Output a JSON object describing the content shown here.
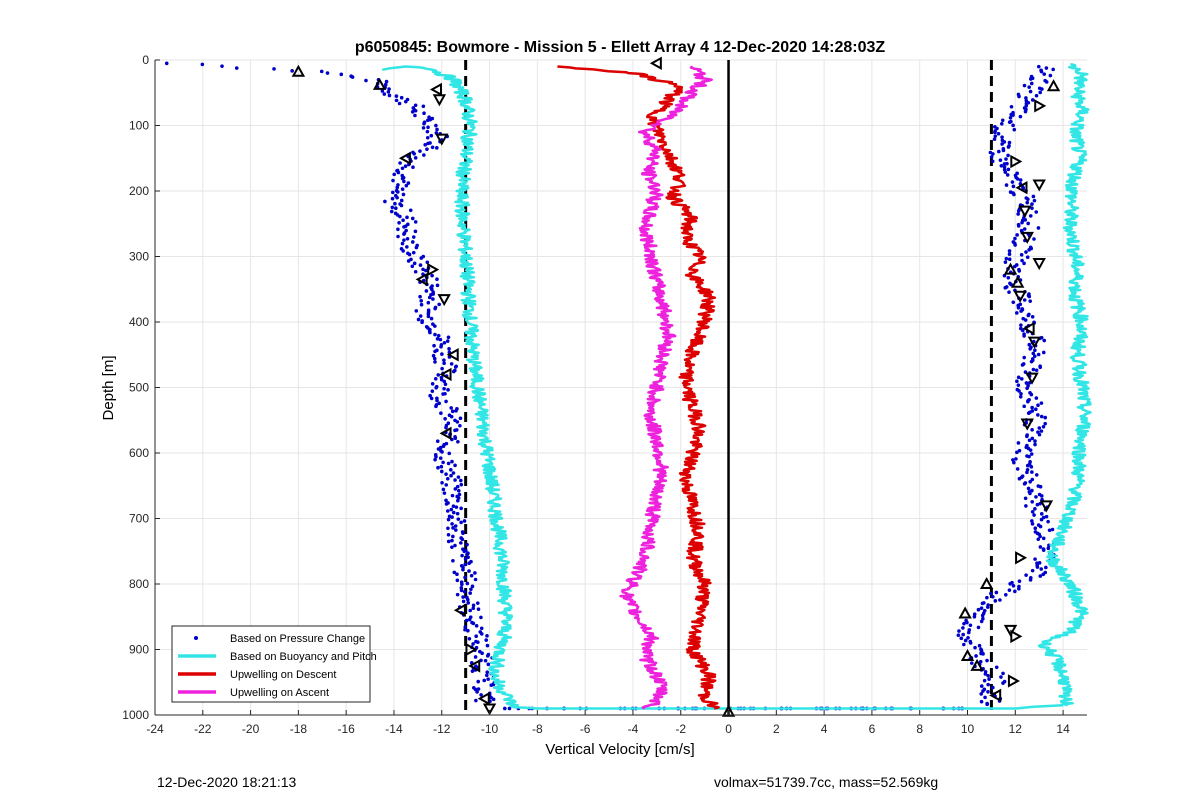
{
  "footer": {
    "left": "12-Dec-2020 18:21:13",
    "right": "volmax=51739.7cc, mass=52.569kg"
  },
  "chart_data": {
    "type": "scatter",
    "title": "p6050845: Bowmore - Mission 5 - Ellett Array 4 12-Dec-2020 14:28:03Z",
    "xlabel": "Vertical Velocity [cm/s]",
    "ylabel": "Depth [m]",
    "xlim": [
      -24,
      15
    ],
    "ylim": [
      0,
      1000
    ],
    "y_reversed": true,
    "grid": true,
    "x_ticks": [
      -24,
      -22,
      -20,
      -18,
      -16,
      -14,
      -12,
      -10,
      -8,
      -6,
      -4,
      -2,
      0,
      2,
      4,
      6,
      8,
      10,
      12,
      14
    ],
    "y_ticks": [
      0,
      100,
      200,
      300,
      400,
      500,
      600,
      700,
      800,
      900,
      1000
    ],
    "reference_lines": [
      {
        "x": -11,
        "style": "dashed",
        "color": "#000000"
      },
      {
        "x": 0,
        "style": "solid",
        "color": "#000000"
      },
      {
        "x": 11,
        "style": "dashed",
        "color": "#000000"
      }
    ],
    "legend": {
      "position": "bottom-left",
      "entries": [
        {
          "label": "Based on Pressure Change",
          "color": "#0000cc",
          "marker": "dot"
        },
        {
          "label": "Based on Buoyancy and Pitch",
          "color": "#33e6e6",
          "marker": "line"
        },
        {
          "label": "Upwelling on Descent",
          "color": "#dd0000",
          "marker": "line"
        },
        {
          "label": "Upwelling on Ascent",
          "color": "#ee22dd",
          "marker": "line"
        }
      ]
    },
    "series": [
      {
        "name": "Based on Pressure Change",
        "style": "dots",
        "color": "#0000cc",
        "groups": [
          {
            "x": [
              -23.5,
              -22.2,
              -21,
              -18.5,
              -17.2,
              -16.5,
              -15.8,
              -14.9,
              -14.4,
              -13.9,
              -13.2,
              -12.9,
              -12.4,
              -12.1,
              -12.3,
              -13.2,
              -13.5,
              -13.8,
              -14.1,
              -13.7,
              -13.4,
              -13.5,
              -13.3,
              -13.0,
              -12.6,
              -12.4,
              -12.5,
              -12.7,
              -12.2,
              -12.0,
              -11.9,
              -11.8,
              -11.9,
              -12.1,
              -11.8,
              -11.6,
              -11.7,
              -11.8,
              -11.9,
              -11.7,
              -11.6,
              -11.5,
              -11.4,
              -11.5,
              -11.3,
              -11.2,
              -11.0,
              -10.9,
              -10.8,
              -10.5,
              -10.3,
              -10.2
            ],
            "y": [
              5,
              5,
              10,
              15,
              18,
              22,
              25,
              30,
              40,
              55,
              70,
              85,
              100,
              115,
              130,
              150,
              170,
              190,
              210,
              230,
              250,
              270,
              290,
              310,
              330,
              350,
              370,
              390,
              410,
              430,
              450,
              470,
              490,
              510,
              530,
              550,
              570,
              590,
              610,
              630,
              650,
              670,
              690,
              710,
              730,
              760,
              790,
              820,
              850,
              880,
              920,
              980
            ]
          },
          {
            "x": [
              13.3,
              13.0,
              12.6,
              12.2,
              11.6,
              11.3,
              11.4,
              11.8,
              12.2,
              12.5,
              12.6,
              12.3,
              12.0,
              11.9,
              12.3,
              12.5,
              12.8,
              12.7,
              12.4,
              12.6,
              12.9,
              12.5,
              12.3,
              12.6,
              12.8,
              13.0,
              13.2,
              13.4,
              13.3,
              13.1,
              12.6,
              12.0,
              11.2,
              10.6,
              10.2,
              10.0,
              10.3,
              10.6,
              11.2,
              11.0,
              10.9
            ],
            "y": [
              10,
              30,
              50,
              70,
              100,
              130,
              160,
              180,
              200,
              220,
              250,
              280,
              310,
              340,
              370,
              400,
              430,
              460,
              490,
              520,
              550,
              580,
              610,
              640,
              670,
              700,
              720,
              740,
              760,
              780,
              790,
              800,
              820,
              840,
              860,
              880,
              900,
              920,
              940,
              960,
              985
            ]
          },
          {
            "x": [
              -9.5,
              -8,
              -6,
              -4,
              -2,
              0,
              2,
              4,
              6,
              8,
              10
            ],
            "y": [
              990,
              993,
              994,
              994,
              994,
              994,
              994,
              993,
              992,
              991,
              990
            ]
          }
        ]
      },
      {
        "name": "Based on Buoyancy and Pitch",
        "style": "line",
        "color": "#33e6e6",
        "groups": [
          {
            "x": [
              -14.5,
              -13.5,
              -12.5,
              -11.5,
              -11.0,
              -10.8,
              -11.0,
              -11.2,
              -11.1,
              -11.0,
              -10.9,
              -10.8,
              -10.7,
              -10.5,
              -10.3,
              -10.1,
              -9.9,
              -9.7,
              -9.5,
              -9.4,
              -9.3,
              -9.4,
              -9.6,
              -9.8,
              -9.5,
              -9.2,
              -9.0,
              -8,
              -6,
              -4,
              -2,
              0,
              2,
              4,
              6,
              8,
              10,
              12,
              14
            ],
            "y": [
              15,
              10,
              12,
              30,
              60,
              100,
              150,
              200,
              250,
              300,
              350,
              400,
              450,
              500,
              550,
              600,
              650,
              700,
              750,
              800,
              850,
              880,
              910,
              940,
              960,
              975,
              988,
              990,
              990,
              990,
              990,
              990,
              990,
              990,
              990,
              990,
              990,
              990,
              985
            ]
          },
          {
            "x": [
              14.2,
              14.8,
              14.6,
              14.8,
              14.5,
              14.7,
              14.4,
              14.3,
              14.6,
              14.5,
              14.8,
              14.6,
              14.8,
              14.9,
              14.7,
              14.6,
              14.2,
              13.5,
              14.3,
              14.8,
              14.4,
              13.2,
              13.8,
              14.1,
              14.0,
              14.2
            ],
            "y": [
              5,
              20,
              50,
              80,
              110,
              150,
              190,
              250,
              320,
              360,
              400,
              450,
              500,
              550,
              600,
              650,
              700,
              760,
              800,
              840,
              870,
              890,
              920,
              950,
              970,
              985
            ]
          }
        ]
      },
      {
        "name": "Upwelling on Descent",
        "style": "line",
        "color": "#dd0000",
        "x": [
          -7.0,
          -4.0,
          -2.0,
          -2.5,
          -3.2,
          -2.8,
          -2.4,
          -2.0,
          -2.3,
          -1.6,
          -1.8,
          -1.2,
          -1.5,
          -0.8,
          -1.0,
          -1.5,
          -1.8,
          -1.6,
          -1.2,
          -1.5,
          -1.8,
          -1.5,
          -1.2,
          -1.5,
          -1.0,
          -1.2,
          -1.5,
          -0.8,
          -1.0,
          -0.6
        ],
        "y": [
          10,
          20,
          40,
          60,
          90,
          120,
          150,
          180,
          210,
          240,
          270,
          300,
          330,
          360,
          400,
          440,
          480,
          520,
          560,
          600,
          640,
          680,
          720,
          760,
          800,
          850,
          900,
          940,
          970,
          990
        ]
      },
      {
        "name": "Upwelling on Ascent",
        "style": "line",
        "color": "#ee22dd",
        "x": [
          -1.5,
          -1.0,
          -1.8,
          -2.5,
          -3.5,
          -3.0,
          -3.4,
          -3.0,
          -3.3,
          -3.5,
          -3.2,
          -3.0,
          -2.7,
          -2.5,
          -2.8,
          -3.0,
          -3.3,
          -3.0,
          -2.8,
          -3.0,
          -3.2,
          -3.5,
          -4.3,
          -3.8,
          -3.2,
          -3.5,
          -3.0,
          -2.8,
          -3.0,
          -3.5
        ],
        "y": [
          10,
          30,
          60,
          90,
          110,
          140,
          170,
          200,
          230,
          260,
          300,
          340,
          380,
          420,
          460,
          500,
          540,
          580,
          620,
          660,
          700,
          760,
          820,
          850,
          880,
          910,
          940,
          960,
          980,
          990
        ]
      },
      {
        "name": "Triangle markers",
        "style": "triangles",
        "color": "#000000",
        "points": [
          {
            "x": -18.0,
            "y": 18,
            "dir": "up"
          },
          {
            "x": -14.6,
            "y": 38,
            "dir": "up"
          },
          {
            "x": -12.2,
            "y": 45,
            "dir": "left"
          },
          {
            "x": -12.1,
            "y": 60,
            "dir": "down"
          },
          {
            "x": -12.0,
            "y": 120,
            "dir": "down"
          },
          {
            "x": -13.5,
            "y": 150,
            "dir": "left"
          },
          {
            "x": -12.4,
            "y": 320,
            "dir": "right"
          },
          {
            "x": -12.8,
            "y": 335,
            "dir": "left"
          },
          {
            "x": -11.9,
            "y": 365,
            "dir": "down"
          },
          {
            "x": -11.5,
            "y": 450,
            "dir": "left"
          },
          {
            "x": -11.8,
            "y": 480,
            "dir": "left"
          },
          {
            "x": -11.8,
            "y": 570,
            "dir": "left"
          },
          {
            "x": -11.2,
            "y": 840,
            "dir": "left"
          },
          {
            "x": -10.8,
            "y": 900,
            "dir": "right"
          },
          {
            "x": -10.6,
            "y": 925,
            "dir": "left"
          },
          {
            "x": -10.2,
            "y": 975,
            "dir": "left"
          },
          {
            "x": -10.0,
            "y": 990,
            "dir": "down"
          },
          {
            "x": -3.0,
            "y": 5,
            "dir": "left"
          },
          {
            "x": 0.0,
            "y": 995,
            "dir": "up"
          },
          {
            "x": 13.6,
            "y": 40,
            "dir": "up"
          },
          {
            "x": 13.0,
            "y": 70,
            "dir": "right"
          },
          {
            "x": 12.0,
            "y": 155,
            "dir": "right"
          },
          {
            "x": 12.3,
            "y": 195,
            "dir": "left"
          },
          {
            "x": 13.0,
            "y": 190,
            "dir": "down"
          },
          {
            "x": 12.4,
            "y": 230,
            "dir": "down"
          },
          {
            "x": 12.5,
            "y": 270,
            "dir": "down"
          },
          {
            "x": 13.0,
            "y": 310,
            "dir": "down"
          },
          {
            "x": 11.8,
            "y": 320,
            "dir": "up"
          },
          {
            "x": 12.1,
            "y": 340,
            "dir": "up"
          },
          {
            "x": 12.2,
            "y": 360,
            "dir": "down"
          },
          {
            "x": 12.6,
            "y": 410,
            "dir": "left"
          },
          {
            "x": 12.8,
            "y": 430,
            "dir": "down"
          },
          {
            "x": 12.7,
            "y": 485,
            "dir": "down"
          },
          {
            "x": 12.5,
            "y": 555,
            "dir": "down"
          },
          {
            "x": 13.3,
            "y": 680,
            "dir": "down"
          },
          {
            "x": 12.2,
            "y": 760,
            "dir": "right"
          },
          {
            "x": 10.8,
            "y": 800,
            "dir": "up"
          },
          {
            "x": 9.9,
            "y": 845,
            "dir": "up"
          },
          {
            "x": 12.0,
            "y": 880,
            "dir": "right"
          },
          {
            "x": 11.8,
            "y": 870,
            "dir": "down"
          },
          {
            "x": 10.0,
            "y": 910,
            "dir": "up"
          },
          {
            "x": 10.4,
            "y": 925,
            "dir": "up"
          },
          {
            "x": 11.9,
            "y": 948,
            "dir": "right"
          },
          {
            "x": 11.2,
            "y": 970,
            "dir": "left"
          }
        ]
      }
    ]
  }
}
